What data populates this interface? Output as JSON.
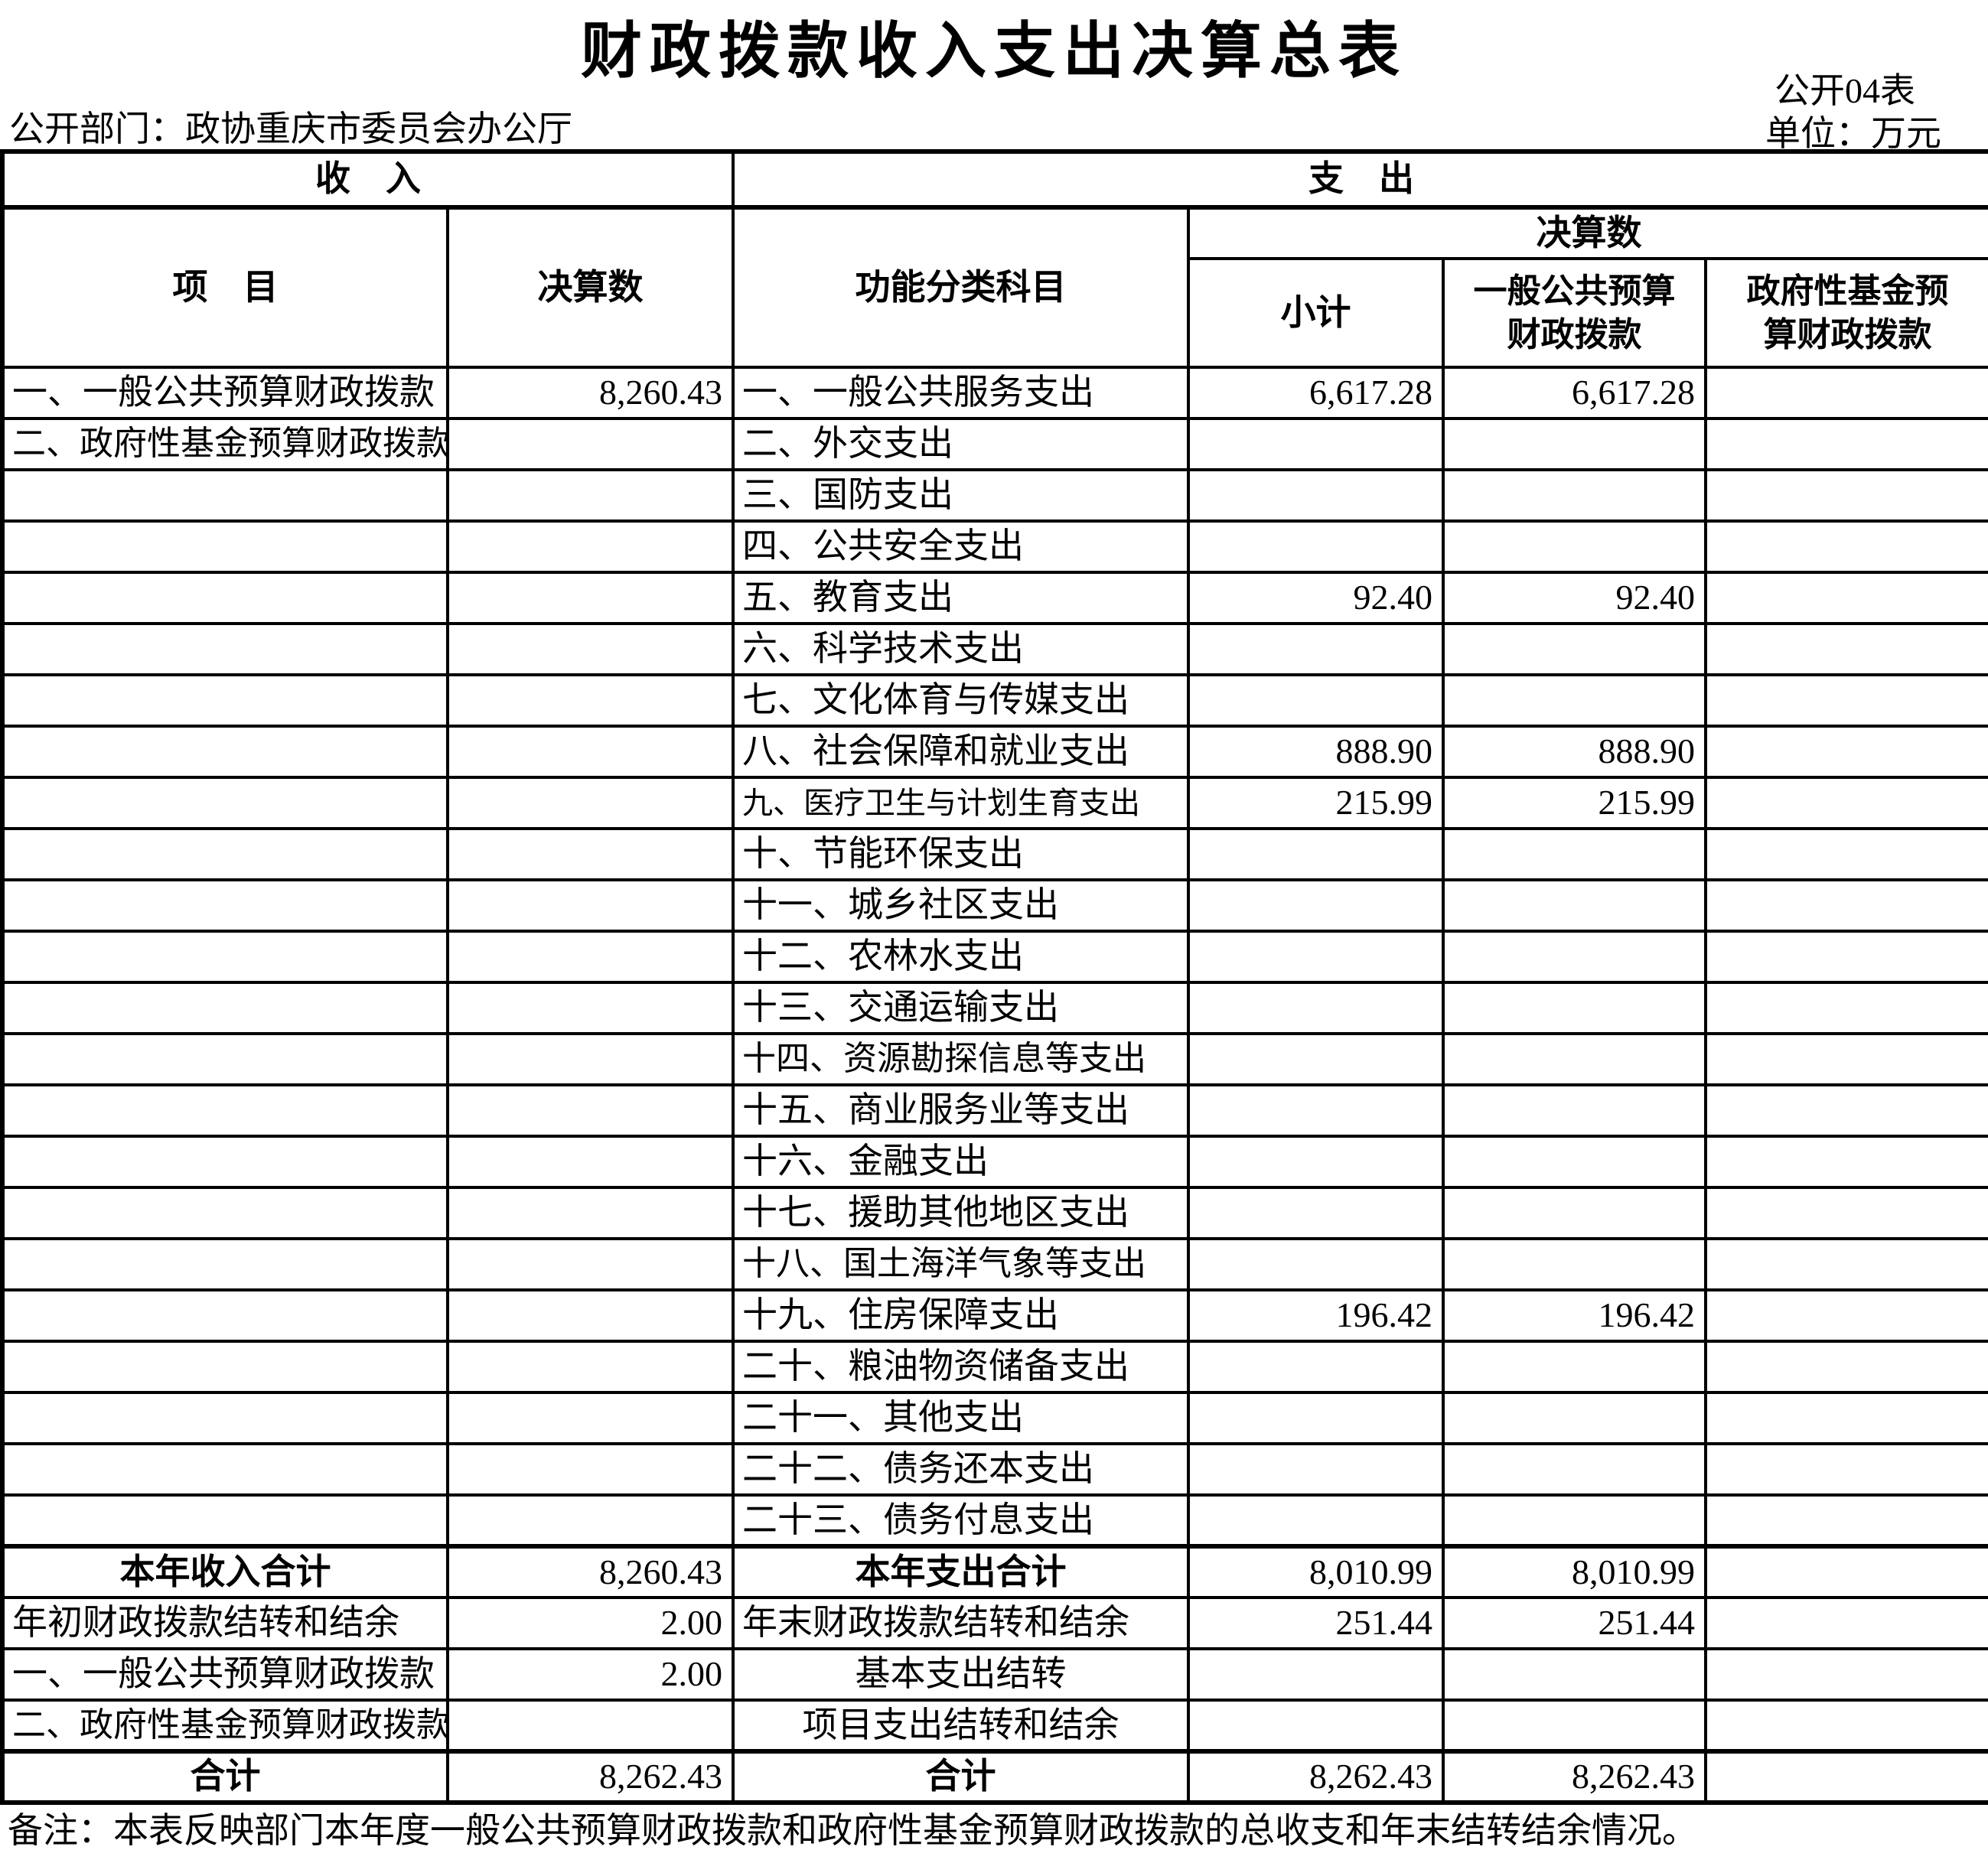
{
  "title": "财政拨款收入支出决算总表",
  "table_code": "公开04表",
  "department_label": "公开部门：政协重庆市委员会办公厅",
  "unit_label": "单位：万元",
  "note": "备注：本表反映部门本年度一般公共预算财政拨款和政府性基金预算财政拨款的总收支和年末结转结余情况。",
  "header": {
    "income": "收　入",
    "expenditure": "支　出",
    "item": "项　目",
    "income_final_accounts": "决算数",
    "functional_subject": "功能分类科目",
    "exp_final_accounts": "决算数",
    "subtotal": "小计",
    "general_budget": "一般公共预算\n财政拨款",
    "gov_fund": "政府性基金预\n算财政拨款"
  },
  "rows": [
    {
      "income": "一、一般公共预算财政拨款",
      "income_value": "8,260.43",
      "exp": "一、一般公共服务支出",
      "subtotal": "6,617.28",
      "general": "6,617.28",
      "fund": ""
    },
    {
      "income": "二、政府性基金预算财政拨款",
      "income_class": "sm2",
      "income_value": "",
      "exp": "二、外交支出",
      "subtotal": "",
      "general": "",
      "fund": ""
    },
    {
      "income": "",
      "income_value": "",
      "exp": "三、国防支出",
      "subtotal": "",
      "general": "",
      "fund": ""
    },
    {
      "income": "",
      "income_value": "",
      "exp": "四、公共安全支出",
      "subtotal": "",
      "general": "",
      "fund": ""
    },
    {
      "income": "",
      "income_value": "",
      "exp": "五、教育支出",
      "subtotal": "92.40",
      "general": "92.40",
      "fund": ""
    },
    {
      "income": "",
      "income_value": "",
      "exp": "六、科学技术支出",
      "subtotal": "",
      "general": "",
      "fund": ""
    },
    {
      "income": "",
      "income_value": "",
      "exp": "七、文化体育与传媒支出",
      "subtotal": "",
      "general": "",
      "fund": ""
    },
    {
      "income": "",
      "income_value": "",
      "exp": "八、社会保障和就业支出",
      "subtotal": "888.90",
      "general": "888.90",
      "fund": ""
    },
    {
      "income": "",
      "income_value": "",
      "exp": "九、医疗卫生与计划生育支出",
      "exp_class": "small",
      "subtotal": "215.99",
      "general": "215.99",
      "fund": ""
    },
    {
      "income": "",
      "income_value": "",
      "exp": "十、节能环保支出",
      "subtotal": "",
      "general": "",
      "fund": ""
    },
    {
      "income": "",
      "income_value": "",
      "exp": "十一、城乡社区支出",
      "subtotal": "",
      "general": "",
      "fund": ""
    },
    {
      "income": "",
      "income_value": "",
      "exp": "十二、农林水支出",
      "subtotal": "",
      "general": "",
      "fund": ""
    },
    {
      "income": "",
      "income_value": "",
      "exp": "十三、交通运输支出",
      "subtotal": "",
      "general": "",
      "fund": ""
    },
    {
      "income": "",
      "income_value": "",
      "exp": "十四、资源勘探信息等支出",
      "exp_class": "sm2",
      "subtotal": "",
      "general": "",
      "fund": ""
    },
    {
      "income": "",
      "income_value": "",
      "exp": "十五、商业服务业等支出",
      "subtotal": "",
      "general": "",
      "fund": ""
    },
    {
      "income": "",
      "income_value": "",
      "exp": "十六、金融支出",
      "subtotal": "",
      "general": "",
      "fund": ""
    },
    {
      "income": "",
      "income_value": "",
      "exp": "十七、援助其他地区支出",
      "subtotal": "",
      "general": "",
      "fund": ""
    },
    {
      "income": "",
      "income_value": "",
      "exp": "十八、国土海洋气象等支出",
      "exp_class": "sm2",
      "subtotal": "",
      "general": "",
      "fund": ""
    },
    {
      "income": "",
      "income_value": "",
      "exp": "十九、住房保障支出",
      "subtotal": "196.42",
      "general": "196.42",
      "fund": ""
    },
    {
      "income": "",
      "income_value": "",
      "exp": "二十、粮油物资储备支出",
      "subtotal": "",
      "general": "",
      "fund": ""
    },
    {
      "income": "",
      "income_value": "",
      "exp": "二十一、其他支出",
      "subtotal": "",
      "general": "",
      "fund": ""
    },
    {
      "income": "",
      "income_value": "",
      "exp": "二十二、债务还本支出",
      "subtotal": "",
      "general": "",
      "fund": ""
    },
    {
      "income": "",
      "income_value": "",
      "exp": "二十三、债务付息支出",
      "subtotal": "",
      "general": "",
      "fund": ""
    },
    {
      "income": "本年收入合计",
      "income_class": "total",
      "income_value": "8,260.43",
      "exp": "本年支出合计",
      "exp_class": "total",
      "subtotal": "8,010.99",
      "general": "8,010.99",
      "fund": ""
    },
    {
      "income": "年初财政拨款结转和结余",
      "income_value": "2.00",
      "exp": "年末财政拨款结转和结余",
      "subtotal": "251.44",
      "general": "251.44",
      "fund": ""
    },
    {
      "income": "一、一般公共预算财政拨款",
      "income_value": "2.00",
      "exp": "基本支出结转",
      "exp_class": "center",
      "subtotal": "",
      "general": "",
      "fund": ""
    },
    {
      "income": "二、政府性基金预算财政拨款",
      "income_class": "sm2",
      "income_value": "",
      "exp": "项目支出结转和结余",
      "exp_class": "center",
      "subtotal": "",
      "general": "",
      "fund": ""
    },
    {
      "income": "合计",
      "income_class": "total",
      "income_value": "8,262.43",
      "exp": "合计",
      "exp_class": "total",
      "subtotal": "8,262.43",
      "general": "8,262.43",
      "fund": ""
    }
  ]
}
